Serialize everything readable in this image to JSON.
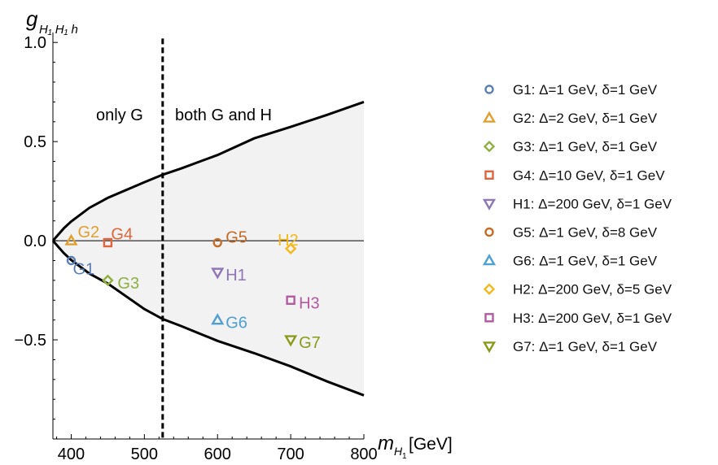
{
  "chart_data": {
    "type": "scatter",
    "xlim": [
      375,
      800
    ],
    "ylim": [
      -1.0,
      1.05
    ],
    "x_ticks": [
      400,
      500,
      600,
      700,
      800
    ],
    "y_ticks": [
      {
        "value": 1.0,
        "label": "1.0"
      },
      {
        "value": 0.5,
        "label": "0.5"
      },
      {
        "value": 0.0,
        "label": "0.0"
      },
      {
        "value": -0.5,
        "label": "−0.5"
      }
    ],
    "y_minor_step": 0.1,
    "x_minor_step": 20,
    "xlabel": {
      "main": "m",
      "sub": "H",
      "subsub": "1",
      "unit": "[GeV]"
    },
    "ylabel": {
      "main": "g",
      "sub": "H₁ H₁ h"
    },
    "boundary": {
      "x": [
        375,
        390,
        400,
        425,
        450,
        500,
        525,
        550,
        600,
        650,
        700,
        750,
        800
      ],
      "upper": [
        0.0,
        0.063,
        0.097,
        0.166,
        0.216,
        0.295,
        0.333,
        0.364,
        0.432,
        0.516,
        0.574,
        0.635,
        0.7
      ],
      "lower": [
        0.0,
        -0.063,
        -0.097,
        -0.166,
        -0.216,
        -0.345,
        -0.395,
        -0.43,
        -0.505,
        -0.567,
        -0.634,
        -0.71,
        -0.78
      ]
    },
    "vline_x": 525,
    "hline_y": 0,
    "region_labels": [
      "only G",
      "both G and H"
    ],
    "points": [
      {
        "label": "G1",
        "x": 400,
        "y": -0.1,
        "marker": "circle",
        "color": "#5b7fb5",
        "legend": "G1: Δ=1 GeV, δ=1 GeV"
      },
      {
        "label": "G2",
        "x": 400,
        "y": 0.0,
        "marker": "triangle-up",
        "color": "#e0a030",
        "legend": "G2: Δ=2 GeV, δ=1 GeV"
      },
      {
        "label": "G3",
        "x": 450,
        "y": -0.2,
        "marker": "diamond",
        "color": "#8fb040",
        "legend": "G3: Δ=1 GeV, δ=1 GeV"
      },
      {
        "label": "G4",
        "x": 450,
        "y": -0.01,
        "marker": "square",
        "color": "#e0643c",
        "legend": "G4: Δ=10 GeV, δ=1 GeV"
      },
      {
        "label": "H1",
        "x": 600,
        "y": -0.16,
        "marker": "triangle-down",
        "color": "#8f76b6",
        "legend": "H1: Δ=200 GeV, δ=1 GeV"
      },
      {
        "label": "G5",
        "x": 600,
        "y": -0.01,
        "marker": "circle",
        "color": "#c46b26",
        "legend": "G5: Δ=1 GeV, δ=8 GeV"
      },
      {
        "label": "G6",
        "x": 600,
        "y": -0.4,
        "marker": "triangle-up",
        "color": "#4f9fd0",
        "legend": "G6: Δ=1 GeV, δ=1 GeV"
      },
      {
        "label": "H2",
        "x": 700,
        "y": -0.04,
        "marker": "diamond",
        "color": "#f4b81a",
        "legend": "H2: Δ=200 GeV, δ=5 GeV"
      },
      {
        "label": "H3",
        "x": 700,
        "y": -0.3,
        "marker": "square",
        "color": "#b35aa0",
        "legend": "H3: Δ=200 GeV, δ=1 GeV"
      },
      {
        "label": "G7",
        "x": 700,
        "y": -0.5,
        "marker": "triangle-down",
        "color": "#8a9a1a",
        "legend": "G7: Δ=1 GeV, δ=1 GeV"
      }
    ],
    "grid": false,
    "legend_position": "right"
  }
}
